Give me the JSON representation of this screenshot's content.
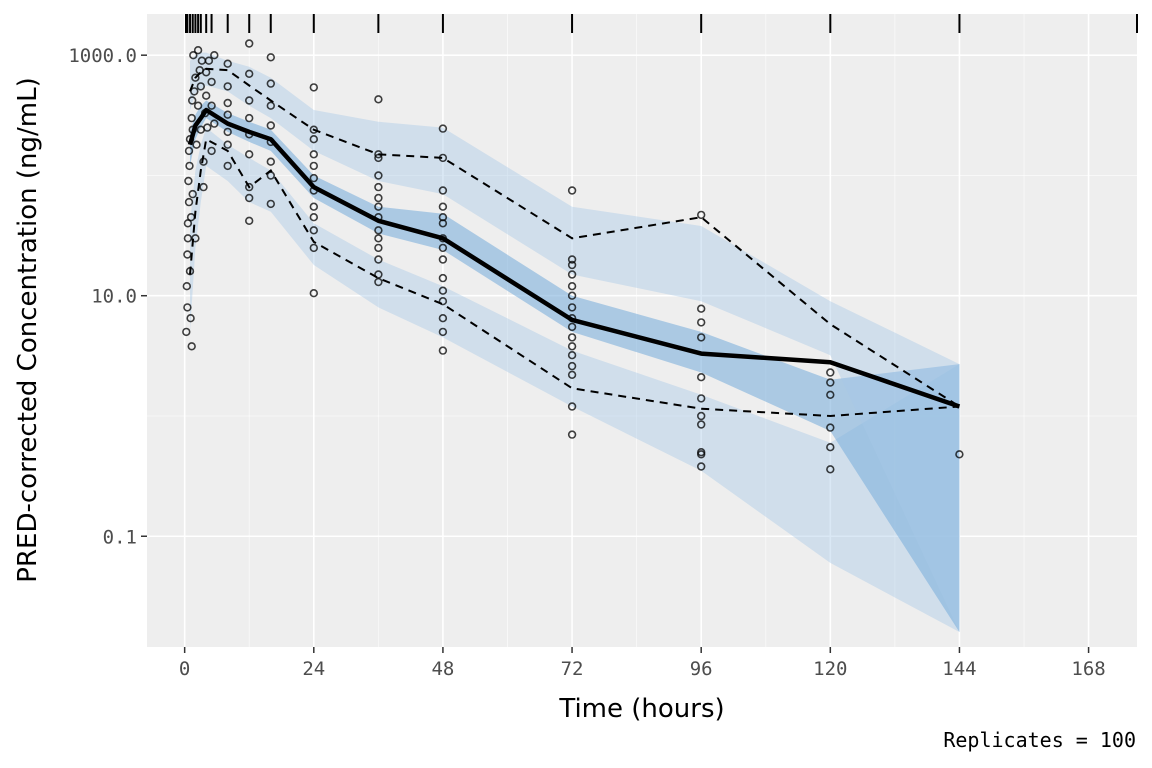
{
  "chart_data": {
    "type": "scatter",
    "title": "",
    "xlabel": "Time (hours)",
    "ylabel": "PRED-corrected Concentration (ng/mL)",
    "caption": "Replicates = 100",
    "x_scale": "linear",
    "y_scale": "log10",
    "xlim": [
      -7,
      177
    ],
    "ylim": [
      0.012,
      2200
    ],
    "x_ticks": [
      0,
      24,
      48,
      72,
      96,
      120,
      144,
      168
    ],
    "x_tick_labels": [
      "0",
      "24",
      "48",
      "72",
      "96",
      "120",
      "144",
      "168"
    ],
    "y_ticks": [
      0.1,
      10,
      1000
    ],
    "y_tick_labels": [
      "0.1",
      "10.0",
      "1000.0"
    ],
    "grid": true,
    "colors": {
      "panel": "#eeeeee",
      "grid": "#ffffff",
      "pi_outer": "#a6c8e6",
      "pi_median": "#7fb0dc",
      "lines": "#000000",
      "points": "#000000"
    },
    "bin_rug_x": [
      0.25,
      0.5,
      1,
      1.5,
      2,
      2.5,
      3,
      4,
      5,
      8,
      12,
      16,
      24,
      36,
      48,
      72,
      96,
      120,
      144,
      177
    ],
    "bins_x": [
      1,
      2,
      3,
      4,
      8,
      12,
      16,
      24,
      36,
      48,
      72,
      96,
      120,
      144
    ],
    "series": [
      {
        "role": "observed_median",
        "style": "solid",
        "x": [
          1,
          2,
          3,
          4,
          8,
          12,
          16,
          24,
          36,
          48,
          72,
          96,
          120,
          144
        ],
        "y": [
          180,
          260,
          300,
          350,
          270,
          230,
          200,
          80,
          42,
          30,
          6.3,
          3.3,
          2.8,
          1.2
        ]
      },
      {
        "role": "observed_p5",
        "style": "dashed",
        "x": [
          1,
          2,
          3,
          4,
          8,
          12,
          16,
          24,
          36,
          48,
          72,
          96,
          120,
          144
        ],
        "y": [
          15,
          50,
          110,
          200,
          160,
          80,
          110,
          28,
          14,
          8.5,
          1.7,
          1.15,
          1.0,
          1.2
        ]
      },
      {
        "role": "observed_p95",
        "style": "dashed",
        "x": [
          1,
          2,
          3,
          4,
          8,
          12,
          16,
          24,
          36,
          48,
          72,
          96,
          120,
          144
        ],
        "y": [
          500,
          650,
          720,
          770,
          750,
          560,
          420,
          240,
          150,
          140,
          30,
          45,
          5.8,
          1.2
        ]
      }
    ],
    "bands": [
      {
        "role": "pi_p5",
        "x": [
          1,
          2,
          3,
          4,
          8,
          12,
          16,
          24,
          36,
          48,
          72,
          96,
          120,
          144
        ],
        "lo": [
          5,
          25,
          60,
          120,
          90,
          60,
          50,
          18,
          8,
          4.5,
          1.2,
          0.35,
          0.06,
          0.016
        ],
        "hi": [
          40,
          110,
          180,
          250,
          180,
          140,
          110,
          40,
          20,
          12,
          3.5,
          1.5,
          0.6,
          2.7
        ]
      },
      {
        "role": "pi_median",
        "x": [
          1,
          2,
          3,
          4,
          8,
          12,
          16,
          24,
          36,
          48,
          72,
          96,
          120,
          144
        ],
        "lo": [
          120,
          200,
          250,
          300,
          230,
          190,
          160,
          65,
          33,
          24,
          5.0,
          2.3,
          0.75,
          0.016
        ],
        "hi": [
          230,
          320,
          380,
          420,
          330,
          280,
          240,
          100,
          55,
          48,
          10,
          5.0,
          2.0,
          2.7
        ]
      },
      {
        "role": "pi_p95",
        "x": [
          1,
          2,
          3,
          4,
          8,
          12,
          16,
          24,
          36,
          48,
          72,
          96,
          120,
          144
        ],
        "lo": [
          350,
          480,
          520,
          560,
          500,
          380,
          300,
          160,
          90,
          70,
          15,
          9,
          3.2,
          0.016
        ],
        "hi": [
          900,
          1000,
          1050,
          1050,
          900,
          800,
          650,
          350,
          280,
          250,
          55,
          38,
          9,
          2.7
        ]
      }
    ],
    "points": [
      {
        "x": 0.3,
        "y": 5
      },
      {
        "x": 0.4,
        "y": 12
      },
      {
        "x": 0.5,
        "y": 22
      },
      {
        "x": 0.6,
        "y": 40
      },
      {
        "x": 0.7,
        "y": 90
      },
      {
        "x": 0.8,
        "y": 160
      },
      {
        "x": 0.5,
        "y": 8
      },
      {
        "x": 0.6,
        "y": 30
      },
      {
        "x": 0.8,
        "y": 60
      },
      {
        "x": 0.9,
        "y": 120
      },
      {
        "x": 1.0,
        "y": 200
      },
      {
        "x": 1.0,
        "y": 16
      },
      {
        "x": 1.1,
        "y": 6.5
      },
      {
        "x": 1.2,
        "y": 45
      },
      {
        "x": 1.3,
        "y": 3.8
      },
      {
        "x": 1.3,
        "y": 300
      },
      {
        "x": 1.4,
        "y": 420
      },
      {
        "x": 1.5,
        "y": 70
      },
      {
        "x": 1.5,
        "y": 240
      },
      {
        "x": 1.6,
        "y": 1000
      },
      {
        "x": 1.8,
        "y": 500
      },
      {
        "x": 2.0,
        "y": 650
      },
      {
        "x": 2.0,
        "y": 30
      },
      {
        "x": 2.2,
        "y": 180
      },
      {
        "x": 2.5,
        "y": 380
      },
      {
        "x": 2.5,
        "y": 1100
      },
      {
        "x": 2.8,
        "y": 750
      },
      {
        "x": 3.0,
        "y": 240
      },
      {
        "x": 3.0,
        "y": 550
      },
      {
        "x": 3.2,
        "y": 900
      },
      {
        "x": 3.5,
        "y": 130
      },
      {
        "x": 3.5,
        "y": 80
      },
      {
        "x": 3.8,
        "y": 330
      },
      {
        "x": 4.0,
        "y": 720
      },
      {
        "x": 4.0,
        "y": 460
      },
      {
        "x": 4.2,
        "y": 250
      },
      {
        "x": 4.5,
        "y": 900
      },
      {
        "x": 5.0,
        "y": 600
      },
      {
        "x": 5.0,
        "y": 380
      },
      {
        "x": 5.0,
        "y": 160
      },
      {
        "x": 5.5,
        "y": 1000
      },
      {
        "x": 5.5,
        "y": 270
      },
      {
        "x": 8.0,
        "y": 850
      },
      {
        "x": 8.0,
        "y": 550
      },
      {
        "x": 8.0,
        "y": 400
      },
      {
        "x": 8.0,
        "y": 320
      },
      {
        "x": 8.0,
        "y": 230
      },
      {
        "x": 8.0,
        "y": 180
      },
      {
        "x": 8.0,
        "y": 120
      },
      {
        "x": 12.0,
        "y": 1250
      },
      {
        "x": 12.0,
        "y": 700
      },
      {
        "x": 12.0,
        "y": 420
      },
      {
        "x": 12.0,
        "y": 300
      },
      {
        "x": 12.0,
        "y": 220
      },
      {
        "x": 12.0,
        "y": 150
      },
      {
        "x": 12.0,
        "y": 80
      },
      {
        "x": 12.0,
        "y": 65
      },
      {
        "x": 12.0,
        "y": 42
      },
      {
        "x": 16.0,
        "y": 960
      },
      {
        "x": 16.0,
        "y": 580
      },
      {
        "x": 16.0,
        "y": 380
      },
      {
        "x": 16.0,
        "y": 260
      },
      {
        "x": 16.0,
        "y": 190
      },
      {
        "x": 16.0,
        "y": 130
      },
      {
        "x": 16.0,
        "y": 100
      },
      {
        "x": 16.0,
        "y": 58
      },
      {
        "x": 24.0,
        "y": 540
      },
      {
        "x": 24.0,
        "y": 240
      },
      {
        "x": 24.0,
        "y": 200
      },
      {
        "x": 24.0,
        "y": 150
      },
      {
        "x": 24.0,
        "y": 120
      },
      {
        "x": 24.0,
        "y": 95
      },
      {
        "x": 24.0,
        "y": 75
      },
      {
        "x": 24.0,
        "y": 55
      },
      {
        "x": 24.0,
        "y": 45
      },
      {
        "x": 24.0,
        "y": 35
      },
      {
        "x": 24.0,
        "y": 25
      },
      {
        "x": 24.0,
        "y": 10.5
      },
      {
        "x": 36.0,
        "y": 430
      },
      {
        "x": 36.0,
        "y": 150
      },
      {
        "x": 36.0,
        "y": 140
      },
      {
        "x": 36.0,
        "y": 100
      },
      {
        "x": 36.0,
        "y": 80
      },
      {
        "x": 36.0,
        "y": 65
      },
      {
        "x": 36.0,
        "y": 55
      },
      {
        "x": 36.0,
        "y": 45
      },
      {
        "x": 36.0,
        "y": 35
      },
      {
        "x": 36.0,
        "y": 30
      },
      {
        "x": 36.0,
        "y": 25
      },
      {
        "x": 36.0,
        "y": 20
      },
      {
        "x": 36.0,
        "y": 15
      },
      {
        "x": 36.0,
        "y": 13
      },
      {
        "x": 48.0,
        "y": 245
      },
      {
        "x": 48.0,
        "y": 140
      },
      {
        "x": 48.0,
        "y": 75
      },
      {
        "x": 48.0,
        "y": 55
      },
      {
        "x": 48.0,
        "y": 45
      },
      {
        "x": 48.0,
        "y": 40
      },
      {
        "x": 48.0,
        "y": 30
      },
      {
        "x": 48.0,
        "y": 25
      },
      {
        "x": 48.0,
        "y": 20
      },
      {
        "x": 48.0,
        "y": 14
      },
      {
        "x": 48.0,
        "y": 11
      },
      {
        "x": 48.0,
        "y": 9
      },
      {
        "x": 48.0,
        "y": 6.5
      },
      {
        "x": 48.0,
        "y": 5
      },
      {
        "x": 48.0,
        "y": 3.5
      },
      {
        "x": 72.0,
        "y": 75
      },
      {
        "x": 72.0,
        "y": 20
      },
      {
        "x": 72.0,
        "y": 18
      },
      {
        "x": 72.0,
        "y": 15
      },
      {
        "x": 72.0,
        "y": 12
      },
      {
        "x": 72.0,
        "y": 10
      },
      {
        "x": 72.0,
        "y": 8
      },
      {
        "x": 72.0,
        "y": 6.5
      },
      {
        "x": 72.0,
        "y": 5.5
      },
      {
        "x": 72.0,
        "y": 4.5
      },
      {
        "x": 72.0,
        "y": 3.8
      },
      {
        "x": 72.0,
        "y": 3.2
      },
      {
        "x": 72.0,
        "y": 2.6
      },
      {
        "x": 72.0,
        "y": 2.2
      },
      {
        "x": 72.0,
        "y": 1.2
      },
      {
        "x": 72.0,
        "y": 0.7
      },
      {
        "x": 96.0,
        "y": 47
      },
      {
        "x": 96.0,
        "y": 7.8
      },
      {
        "x": 96.0,
        "y": 6
      },
      {
        "x": 96.0,
        "y": 4.5
      },
      {
        "x": 96.0,
        "y": 2.1
      },
      {
        "x": 96.0,
        "y": 1.4
      },
      {
        "x": 96.0,
        "y": 1.0
      },
      {
        "x": 96.0,
        "y": 0.85
      },
      {
        "x": 96.0,
        "y": 0.5
      },
      {
        "x": 96.0,
        "y": 0.48
      },
      {
        "x": 96.0,
        "y": 0.38
      },
      {
        "x": 120.0,
        "y": 2.3
      },
      {
        "x": 120.0,
        "y": 1.9
      },
      {
        "x": 120.0,
        "y": 1.5
      },
      {
        "x": 120.0,
        "y": 0.8
      },
      {
        "x": 120.0,
        "y": 0.55
      },
      {
        "x": 120.0,
        "y": 0.36
      },
      {
        "x": 144.0,
        "y": 0.48
      }
    ]
  }
}
